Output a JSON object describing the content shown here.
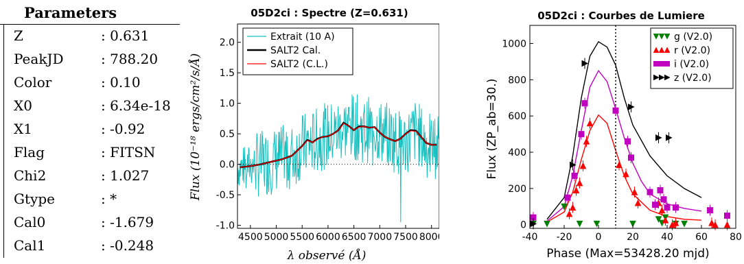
{
  "parameters": {
    "title": "Parameters",
    "rows": [
      {
        "key": "Z",
        "value": ": 0.631"
      },
      {
        "key": "PeakJD",
        "value": ": 788.20"
      },
      {
        "key": "Color",
        "value": ": 0.10"
      },
      {
        "key": "X0",
        "value": ": 6.34e-18"
      },
      {
        "key": "X1",
        "value": ": -0.92"
      },
      {
        "key": "Flag",
        "value": ": FITSN"
      },
      {
        "key": "Chi2",
        "value": ": 1.027"
      },
      {
        "key": "Gtype",
        "value": ": *"
      },
      {
        "key": "Cal0",
        "value": ": -1.679"
      },
      {
        "key": "Cal1",
        "value": ": -0.248"
      }
    ]
  },
  "chart_data": [
    {
      "type": "line",
      "title": "05D2ci : Spectre (Z=0.631)",
      "xlabel": "λ observé (Å)",
      "ylabel": "Flux (10⁻¹⁸ ergs/cm²/s/Å)",
      "xlim": [
        4250,
        8150
      ],
      "ylim": [
        -1.05,
        2.3
      ],
      "x_ticks": [
        "4500",
        "5000",
        "5500",
        "6000",
        "6500",
        "7000",
        "7500",
        "8000"
      ],
      "y_ticks": [
        "-1.0",
        "-0.5",
        "0.0",
        "0.5",
        "1.0",
        "1.5",
        "2.0"
      ],
      "legend_placement": "top-left",
      "zero_line": true,
      "series": [
        {
          "name": "Extrait (10 A)",
          "color": "#17bfbf",
          "style": "noisy",
          "x": [
            4300,
            4500,
            4700,
            4900,
            5100,
            5300,
            5500,
            5700,
            5900,
            6100,
            6300,
            6500,
            6700,
            6900,
            7100,
            7300,
            7500,
            7700,
            7900,
            8100
          ],
          "y": [
            -0.05,
            -0.02,
            0.0,
            0.05,
            0.1,
            0.12,
            0.3,
            0.35,
            0.45,
            0.5,
            0.6,
            0.62,
            0.55,
            0.6,
            0.5,
            0.4,
            0.35,
            0.55,
            0.3,
            0.3
          ]
        },
        {
          "name": "SALT2 Cal.",
          "color": "#000000",
          "x": [
            4300,
            4500,
            4700,
            4900,
            5100,
            5300,
            5500,
            5600,
            5700,
            5800,
            5900,
            6000,
            6100,
            6200,
            6300,
            6400,
            6500,
            6600,
            6700,
            6800,
            6900,
            7000,
            7100,
            7200,
            7300,
            7400,
            7500,
            7600,
            7700,
            7800,
            7900,
            8000,
            8100
          ],
          "y": [
            -0.05,
            -0.03,
            0.0,
            0.04,
            0.08,
            0.14,
            0.3,
            0.4,
            0.36,
            0.42,
            0.45,
            0.46,
            0.5,
            0.56,
            0.68,
            0.63,
            0.56,
            0.62,
            0.62,
            0.6,
            0.61,
            0.52,
            0.45,
            0.41,
            0.38,
            0.42,
            0.5,
            0.56,
            0.55,
            0.45,
            0.35,
            0.32,
            0.32
          ]
        },
        {
          "name": "SALT2 (C.L.)",
          "color": "#ff0000",
          "x": [
            4300,
            4500,
            4700,
            4900,
            5100,
            5300,
            5500,
            5600,
            5700,
            5800,
            5900,
            6000,
            6100,
            6200,
            6300,
            6400,
            6500,
            6600,
            6700,
            6800,
            6900,
            7000,
            7100,
            7200,
            7300,
            7400,
            7500,
            7600,
            7700,
            7800,
            7900,
            8000,
            8100
          ],
          "y": [
            -0.05,
            -0.03,
            0.0,
            0.04,
            0.08,
            0.14,
            0.3,
            0.39,
            0.36,
            0.41,
            0.45,
            0.46,
            0.5,
            0.56,
            0.67,
            0.63,
            0.56,
            0.61,
            0.62,
            0.6,
            0.61,
            0.52,
            0.45,
            0.41,
            0.38,
            0.42,
            0.5,
            0.55,
            0.54,
            0.45,
            0.35,
            0.32,
            0.32
          ]
        }
      ]
    },
    {
      "type": "scatter",
      "title": "05D2ci : Courbes de Lumiere",
      "xlabel": "Phase (Max=53428.20 mjd)",
      "ylabel": "Flux (ZP_ab=30.)",
      "xlim": [
        -40,
        80
      ],
      "ylim": [
        -20,
        1100
      ],
      "x_ticks": [
        "-40",
        "-20",
        "0",
        "20",
        "40",
        "60",
        "80"
      ],
      "y_ticks": [
        "0",
        "200",
        "400",
        "600",
        "800",
        "1000"
      ],
      "vline_x": 10,
      "legend_placement": "top-right",
      "series": [
        {
          "name": "g (V2.0)",
          "color": "#008000",
          "marker": "triangle-down",
          "points": [
            [
              -38,
              5
            ],
            [
              -30,
              5
            ],
            [
              -20,
              100
            ],
            [
              -11,
              5
            ],
            [
              -1,
              5
            ],
            [
              20,
              5
            ],
            [
              35,
              30
            ],
            [
              37,
              10
            ],
            [
              39,
              40
            ],
            [
              45,
              5
            ],
            [
              50,
              5
            ]
          ],
          "curve": null
        },
        {
          "name": "r (V2.0)",
          "color": "#ff0000",
          "marker": "triangle-up",
          "points": [
            [
              -17,
              60
            ],
            [
              -15,
              95
            ],
            [
              -13,
              190
            ],
            [
              -11,
              230
            ],
            [
              -9,
              325
            ],
            [
              -7,
              460
            ],
            [
              -5,
              560
            ],
            [
              12,
              330
            ],
            [
              16,
              280
            ],
            [
              21,
              180
            ],
            [
              23,
              120
            ],
            [
              35,
              120
            ],
            [
              37,
              80
            ],
            [
              39,
              25
            ],
            [
              43,
              0
            ],
            [
              45,
              10
            ],
            [
              66,
              10
            ],
            [
              68,
              0
            ],
            [
              75,
              0
            ]
          ],
          "curve": [
            [
              -30,
              15
            ],
            [
              -20,
              70
            ],
            [
              -15,
              180
            ],
            [
              -10,
              360
            ],
            [
              -5,
              520
            ],
            [
              0,
              605
            ],
            [
              5,
              560
            ],
            [
              10,
              410
            ],
            [
              15,
              270
            ],
            [
              20,
              170
            ],
            [
              30,
              80
            ],
            [
              40,
              45
            ],
            [
              50,
              30
            ],
            [
              60,
              25
            ]
          ]
        },
        {
          "name": "i (V2.0)",
          "color": "#bf00bf",
          "marker": "square",
          "points": [
            [
              -38,
              40
            ],
            [
              -18,
              150
            ],
            [
              -14,
              270
            ],
            [
              -10,
              500
            ],
            [
              -8,
              670
            ],
            [
              10,
              630
            ],
            [
              17,
              460
            ],
            [
              19,
              370
            ],
            [
              30,
              180
            ],
            [
              33,
              110
            ],
            [
              36,
              190
            ],
            [
              38,
              140
            ],
            [
              40,
              95
            ],
            [
              45,
              95
            ],
            [
              65,
              80
            ],
            [
              75,
              50
            ]
          ],
          "curve": [
            [
              -30,
              20
            ],
            [
              -20,
              100
            ],
            [
              -15,
              270
            ],
            [
              -10,
              520
            ],
            [
              -5,
              760
            ],
            [
              0,
              850
            ],
            [
              5,
              790
            ],
            [
              10,
              640
            ],
            [
              15,
              480
            ],
            [
              20,
              340
            ],
            [
              25,
              240
            ],
            [
              30,
              170
            ],
            [
              40,
              115
            ],
            [
              50,
              90
            ],
            [
              60,
              75
            ]
          ]
        },
        {
          "name": "z (V2.0)",
          "color": "#000000",
          "marker": "triangle-right",
          "points": [
            [
              -38,
              5
            ],
            [
              -15,
              330
            ],
            [
              -8,
              890
            ],
            [
              19,
              650
            ],
            [
              35,
              480
            ],
            [
              41,
              480
            ]
          ],
          "curve": [
            [
              -30,
              30
            ],
            [
              -20,
              150
            ],
            [
              -15,
              380
            ],
            [
              -10,
              700
            ],
            [
              -5,
              930
            ],
            [
              0,
              1010
            ],
            [
              5,
              980
            ],
            [
              10,
              880
            ],
            [
              15,
              700
            ],
            [
              20,
              550
            ],
            [
              30,
              380
            ],
            [
              40,
              270
            ],
            [
              50,
              200
            ],
            [
              60,
              150
            ]
          ]
        }
      ]
    }
  ],
  "colors": {
    "axis": "#000000",
    "cyan": "#17bfbf",
    "red": "#ff0000",
    "green": "#008000",
    "magenta": "#bf00bf"
  }
}
